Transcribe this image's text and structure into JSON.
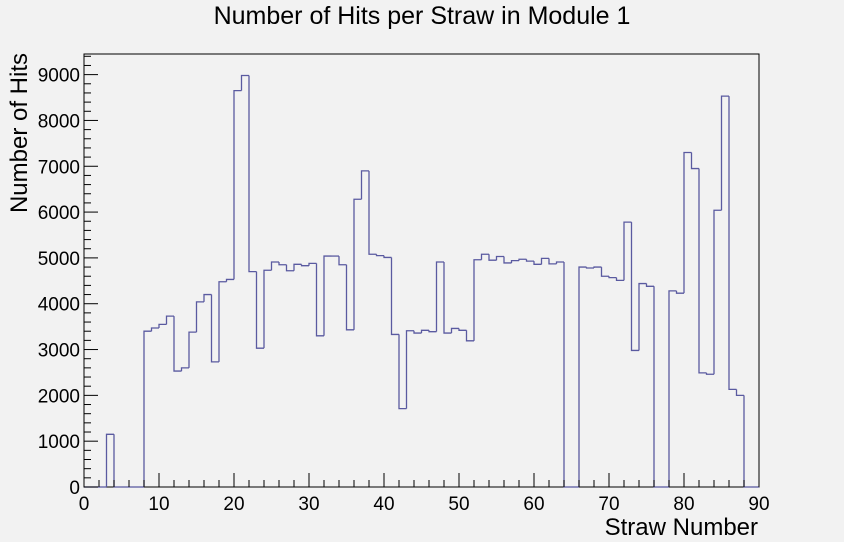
{
  "chart_data": {
    "type": "histogram",
    "title": "Number of Hits per Straw in Module 1",
    "xlabel": "Straw Number",
    "ylabel": "Number of Hits",
    "xlim": [
      0,
      90
    ],
    "ylim": [
      0,
      9450
    ],
    "bin_width": 1,
    "x_ticks": [
      0,
      10,
      20,
      30,
      40,
      50,
      60,
      70,
      80,
      90
    ],
    "y_ticks": [
      0,
      1000,
      2000,
      3000,
      4000,
      5000,
      6000,
      7000,
      8000,
      9000
    ],
    "grid": false,
    "series_color": "#5a5aa0",
    "values": [
      0,
      0,
      0,
      1150,
      0,
      0,
      0,
      0,
      3400,
      3470,
      3550,
      3730,
      2530,
      2600,
      3380,
      4040,
      4200,
      2730,
      4480,
      4530,
      8650,
      8980,
      4700,
      3030,
      4730,
      4910,
      4850,
      4720,
      4860,
      4830,
      4880,
      3300,
      5040,
      5040,
      4850,
      3430,
      6280,
      6900,
      5080,
      5050,
      5010,
      3330,
      1710,
      3410,
      3360,
      3420,
      3390,
      4910,
      3360,
      3460,
      3420,
      3190,
      4960,
      5080,
      4950,
      5030,
      4890,
      4940,
      4970,
      4930,
      4860,
      4990,
      4870,
      4910,
      0,
      0,
      4800,
      4780,
      4800,
      4600,
      4570,
      4510,
      5780,
      2980,
      4440,
      4380,
      0,
      0,
      4280,
      4230,
      7300,
      6950,
      2490,
      2460,
      6040,
      8530,
      2130,
      2000,
      0,
      0
    ]
  }
}
